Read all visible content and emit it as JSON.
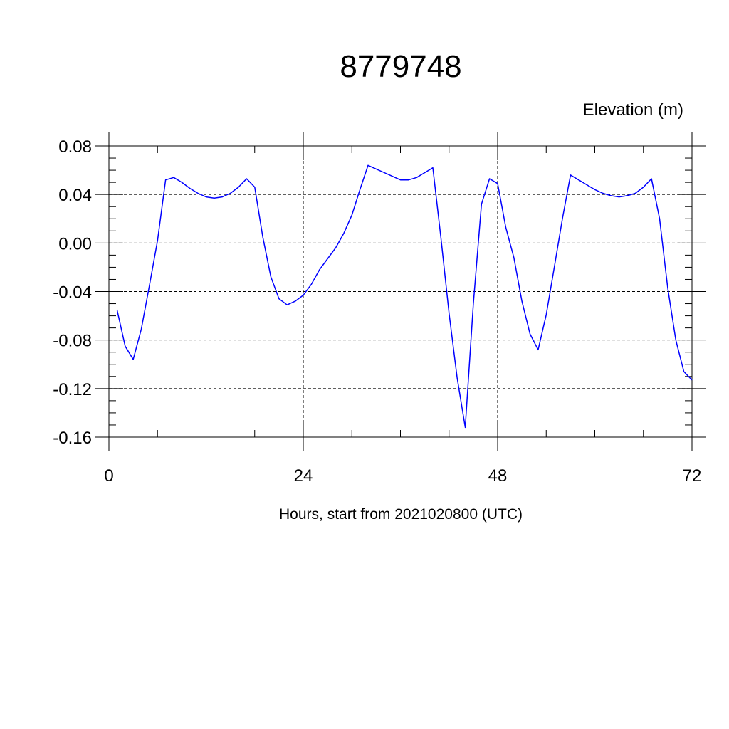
{
  "chart_data": {
    "type": "line",
    "title": "8779748",
    "ylabel": "Elevation (m)",
    "xlabel": "Hours, start from 2021020800 (UTC)",
    "xlim": [
      0,
      72
    ],
    "ylim": [
      -0.16,
      0.08
    ],
    "x_ticks": [
      0,
      24,
      48,
      72
    ],
    "x_tick_labels": [
      "0",
      "24",
      "48",
      "72"
    ],
    "y_ticks": [
      0.08,
      0.04,
      0.0,
      -0.04,
      -0.08,
      -0.12,
      -0.16
    ],
    "y_tick_labels": [
      "0.08",
      "0.04",
      "0.00",
      "-0.04",
      "-0.08",
      "-0.12",
      "-0.16"
    ],
    "grid": true,
    "line_color": "#0000ff",
    "series": [
      {
        "x": [
          1,
          2,
          3,
          4,
          5,
          6,
          7,
          8,
          9,
          10,
          11,
          12,
          13,
          14,
          15,
          16,
          17,
          18,
          19,
          20,
          21,
          22,
          23,
          24,
          25,
          26,
          27,
          28,
          29,
          30,
          31,
          32,
          33,
          34,
          35,
          36,
          37,
          38,
          39,
          40,
          41,
          42,
          43,
          44,
          45,
          46,
          47,
          48,
          49,
          50,
          51,
          52,
          53,
          54,
          55,
          56,
          57,
          58,
          59,
          60,
          61,
          62,
          63,
          64,
          65,
          66,
          67,
          68,
          69,
          70,
          71,
          72
        ],
        "values": [
          -0.055,
          -0.085,
          -0.096,
          -0.071,
          -0.035,
          0.002,
          0.052,
          0.054,
          0.05,
          0.045,
          0.041,
          0.038,
          0.037,
          0.038,
          0.041,
          0.046,
          0.053,
          0.046,
          0.005,
          -0.028,
          -0.046,
          -0.051,
          -0.048,
          -0.043,
          -0.034,
          -0.022,
          -0.013,
          -0.004,
          0.008,
          0.023,
          0.044,
          0.064,
          0.061,
          0.058,
          0.055,
          0.052,
          0.052,
          0.054,
          0.058,
          0.062,
          0.004,
          -0.058,
          -0.111,
          -0.152,
          -0.05,
          0.032,
          0.053,
          0.049,
          0.013,
          -0.012,
          -0.048,
          -0.075,
          -0.088,
          -0.059,
          -0.02,
          0.02,
          0.056,
          0.052,
          0.048,
          0.044,
          0.041,
          0.039,
          0.038,
          0.039,
          0.041,
          0.046,
          0.053,
          0.02,
          -0.037,
          -0.08,
          -0.106,
          -0.113
        ]
      }
    ]
  }
}
